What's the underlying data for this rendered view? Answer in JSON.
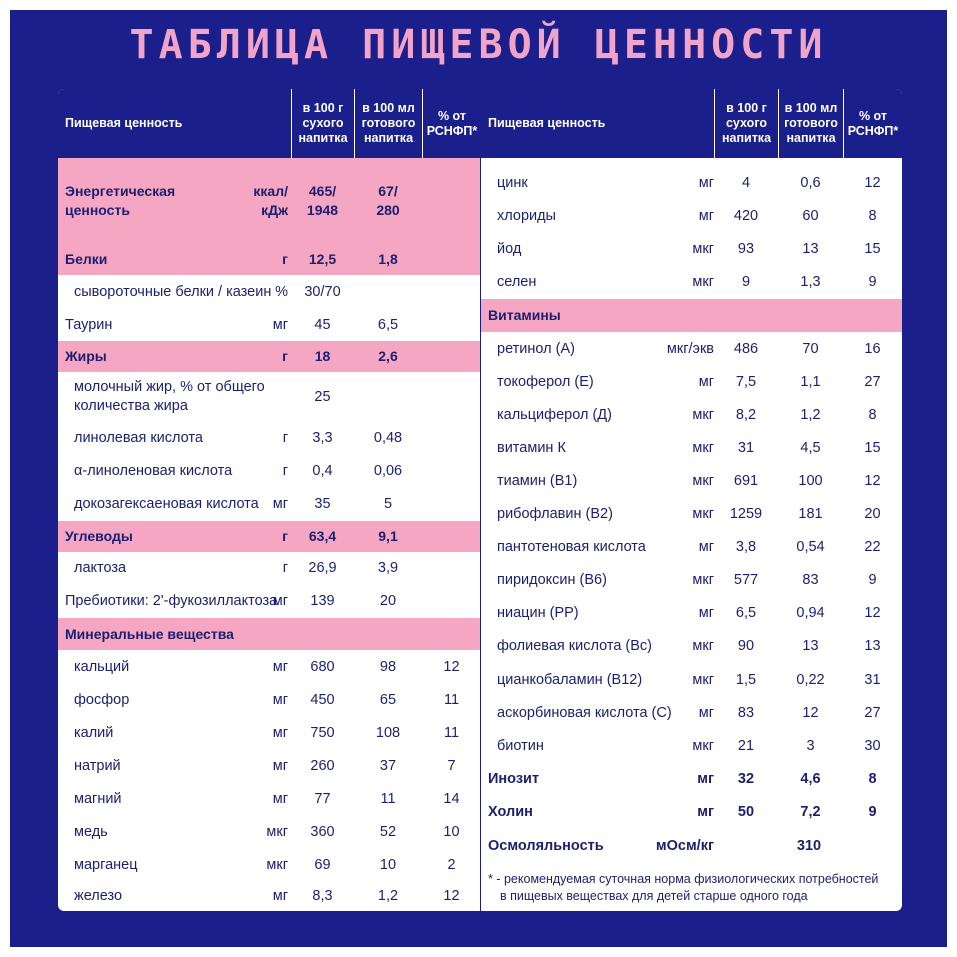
{
  "title": "ТАБЛИЦА ПИЩЕВОЙ ЦЕННОСТИ",
  "colors": {
    "background": "#1a1f8c",
    "title": "#f2a4c8",
    "highlight": "#f4a6c3",
    "text": "#1b1f6e"
  },
  "header": {
    "name": "Пищевая ценность",
    "dry_line1": "в 100 г",
    "dry_line2": "сухого",
    "dry_line3": "напитка",
    "ready_line1": "в 100 мл",
    "ready_line2": "готового",
    "ready_line3": "напитка",
    "rsnfp_line1": "% от",
    "rsnfp_line2": "РСНФП*"
  },
  "left_rows": [
    {
      "name": "Энергетическая",
      "name2": "ценность",
      "unit": "ккал/",
      "unit2": "кДж",
      "dry": "465/",
      "dry2": "1948",
      "ready": "67/",
      "ready2": "280",
      "pct": "",
      "style": "pink",
      "y": 69,
      "h": 86
    },
    {
      "name": "Белки",
      "unit": "г",
      "dry": "12,5",
      "ready": "1,8",
      "pct": "",
      "style": "pink",
      "y": 155,
      "h": 31
    },
    {
      "name": "сывороточные белки / казеин",
      "unit": "%",
      "dry": "30/70",
      "ready": "",
      "pct": "",
      "style": "indent",
      "y": 186,
      "h": 34
    },
    {
      "name": "Таурин",
      "unit": "мг",
      "dry": "45",
      "ready": "6,5",
      "pct": "",
      "style": "",
      "y": 220,
      "h": 32
    },
    {
      "name": "Жиры",
      "unit": "г",
      "dry": "18",
      "ready": "2,6",
      "pct": "",
      "style": "pink",
      "y": 232,
      "h": 31
    },
    {
      "name": "молочный жир, % от общего",
      "name2": "количества жира",
      "unit": "",
      "dry": "25",
      "ready": "",
      "pct": "",
      "style": "indent",
      "y": 263,
      "h": 50
    },
    {
      "name": "линолевая кислота",
      "unit": "г",
      "dry": "3,3",
      "ready": "0,48",
      "pct": "",
      "style": "indent",
      "y": 316,
      "h": 33
    },
    {
      "name": "α-линоленовая кислота",
      "unit": "г",
      "dry": "0,4",
      "ready": "0,06",
      "pct": "",
      "style": "indent",
      "y": 349,
      "h": 33
    },
    {
      "name": "докозагексаеновая кислота",
      "unit": "мг",
      "dry": "35",
      "ready": "5",
      "pct": "",
      "style": "indent",
      "y": 382,
      "h": 33
    },
    {
      "name": "Углеводы",
      "unit": "г",
      "dry": "63,4",
      "ready": "9,1",
      "pct": "",
      "style": "pink",
      "y": 415,
      "h": 31
    },
    {
      "name": "лактоза",
      "unit": "г",
      "dry": "26,9",
      "ready": "3,9",
      "pct": "",
      "style": "indent",
      "y": 446,
      "h": 33
    },
    {
      "name": "Пребиотики: 2'-фукозиллактоза",
      "unit": "мг",
      "dry": "139",
      "ready": "20",
      "pct": "",
      "style": "",
      "y": 479,
      "h": 33
    },
    {
      "name": "Минеральные вещества",
      "unit": "",
      "dry": "",
      "ready": "",
      "pct": "",
      "style": "pink",
      "y": 512,
      "h": 32
    },
    {
      "name": "кальций",
      "unit": "мг",
      "dry": "680",
      "ready": "98",
      "pct": "12",
      "style": "indent",
      "y": 544,
      "h": 33
    },
    {
      "name": "фосфор",
      "unit": "мг",
      "dry": "450",
      "ready": "65",
      "pct": "11",
      "style": "indent",
      "y": 577,
      "h": 33
    },
    {
      "name": "калий",
      "unit": "мг",
      "dry": "750",
      "ready": "108",
      "pct": "11",
      "style": "indent",
      "y": 610,
      "h": 33
    },
    {
      "name": "натрий",
      "unit": "мг",
      "dry": "260",
      "ready": "37",
      "pct": "7",
      "style": "indent",
      "y": 643,
      "h": 33
    },
    {
      "name": "магний",
      "unit": "мг",
      "dry": "77",
      "ready": "11",
      "pct": "14",
      "style": "indent",
      "y": 676,
      "h": 33
    },
    {
      "name": "медь",
      "unit": "мкг",
      "dry": "360",
      "ready": "52",
      "pct": "10",
      "style": "indent",
      "y": 709,
      "h": 33
    },
    {
      "name": "марганец",
      "unit": "мкг",
      "dry": "69",
      "ready": "10",
      "pct": "2",
      "style": "indent",
      "y": 742,
      "h": 33
    },
    {
      "name": "железо",
      "unit": "мг",
      "dry": "8,3",
      "ready": "1,2",
      "pct": "12",
      "style": "indent",
      "y": 775,
      "h": 33
    }
  ],
  "right_rows": [
    {
      "name": "цинк",
      "unit": "мг",
      "dry": "4",
      "ready": "0,6",
      "pct": "12",
      "style": "indent"
    },
    {
      "name": "хлориды",
      "unit": "мг",
      "dry": "420",
      "ready": "60",
      "pct": "8",
      "style": "indent"
    },
    {
      "name": "йод",
      "unit": "мкг",
      "dry": "93",
      "ready": "13",
      "pct": "15",
      "style": "indent"
    },
    {
      "name": "селен",
      "unit": "мкг",
      "dry": "9",
      "ready": "1,3",
      "pct": "9",
      "style": "indent"
    },
    {
      "name": "Витамины",
      "unit": "",
      "dry": "",
      "ready": "",
      "pct": "",
      "style": "pink"
    },
    {
      "name": "ретинол (А)",
      "unit": "мкг/экв",
      "dry": "486",
      "ready": "70",
      "pct": "16",
      "style": "indent"
    },
    {
      "name": "токоферол (Е)",
      "unit": "мг",
      "dry": "7,5",
      "ready": "1,1",
      "pct": "27",
      "style": "indent"
    },
    {
      "name": "кальциферол (Д)",
      "unit": "мкг",
      "dry": "8,2",
      "ready": "1,2",
      "pct": "8",
      "style": "indent"
    },
    {
      "name": "витамин К",
      "unit": "мкг",
      "dry": "31",
      "ready": "4,5",
      "pct": "15",
      "style": "indent"
    },
    {
      "name": "тиамин (В1)",
      "unit": "мкг",
      "dry": "691",
      "ready": "100",
      "pct": "12",
      "style": "indent"
    },
    {
      "name": "рибофлавин (В2)",
      "unit": "мкг",
      "dry": "1259",
      "ready": "181",
      "pct": "20",
      "style": "indent"
    },
    {
      "name": "пантотеновая кислота",
      "unit": "мг",
      "dry": "3,8",
      "ready": "0,54",
      "pct": "22",
      "style": "indent"
    },
    {
      "name": "пиридоксин (В6)",
      "unit": "мкг",
      "dry": "577",
      "ready": "83",
      "pct": "9",
      "style": "indent"
    },
    {
      "name": "ниацин (РР)",
      "unit": "мг",
      "dry": "6,5",
      "ready": "0,94",
      "pct": "12",
      "style": "indent"
    },
    {
      "name": "фолиевая кислота (Вс)",
      "unit": "мкг",
      "dry": "90",
      "ready": "13",
      "pct": "13",
      "style": "indent"
    },
    {
      "name": "цианкобаламин (В12)",
      "unit": "мкг",
      "dry": "1,5",
      "ready": "0,22",
      "pct": "31",
      "style": "indent"
    },
    {
      "name": "аскорбиновая кислота (С)",
      "unit": "мг",
      "dry": "83",
      "ready": "12",
      "pct": "27",
      "style": "indent"
    },
    {
      "name": "биотин",
      "unit": "мкг",
      "dry": "21",
      "ready": "3",
      "pct": "30",
      "style": "indent"
    },
    {
      "name": "Инозит",
      "unit": "мг",
      "dry": "32",
      "ready": "4,6",
      "pct": "8",
      "style": "bold"
    },
    {
      "name": "Холин",
      "unit": "мг",
      "dry": "50",
      "ready": "7,2",
      "pct": "9",
      "style": "bold"
    }
  ],
  "osmolality": {
    "name": "Осмоляльность",
    "unit": "мОсм/кг",
    "value": "310"
  },
  "footnote_line1": "* - рекомендуемая суточная норма физиологических потребностей",
  "footnote_line2": "в пищевых веществах для детей старше одного года"
}
